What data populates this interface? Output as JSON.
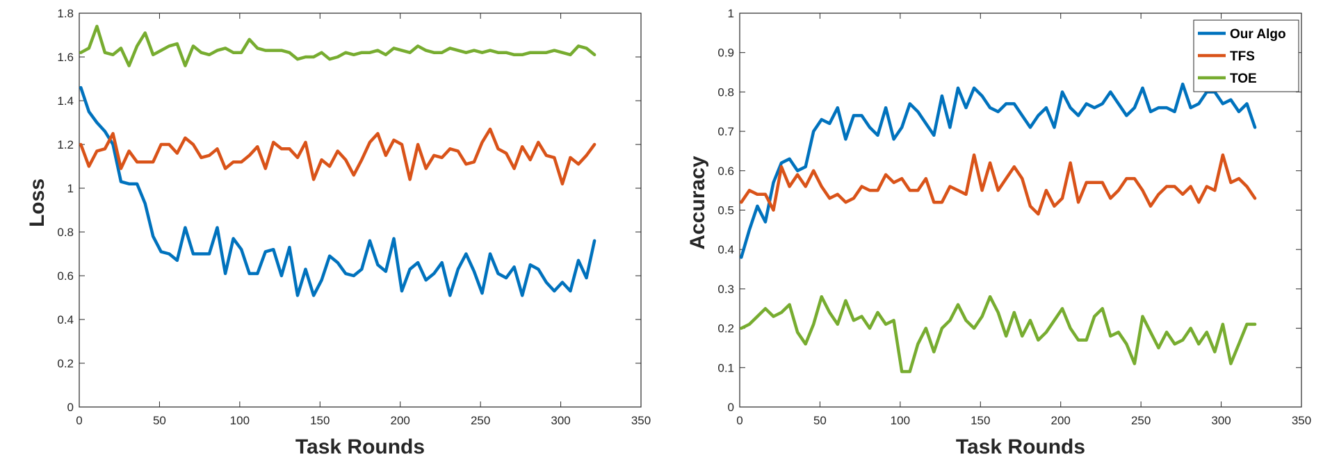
{
  "chart_data": [
    {
      "type": "line",
      "title": "",
      "xlabel": "Task Rounds",
      "ylabel": "Loss",
      "xlim": [
        0,
        350
      ],
      "ylim": [
        0,
        1.8
      ],
      "xticks": [
        0,
        50,
        100,
        150,
        200,
        250,
        300,
        350
      ],
      "yticks": [
        0,
        0.2,
        0.4,
        0.6,
        0.8,
        1,
        1.2,
        1.4,
        1.6,
        1.8
      ],
      "grid": false,
      "legend": "none",
      "x": [
        1,
        6,
        11,
        16,
        21,
        26,
        31,
        36,
        41,
        46,
        51,
        56,
        61,
        66,
        71,
        76,
        81,
        86,
        91,
        96,
        101,
        106,
        111,
        116,
        121,
        126,
        131,
        136,
        141,
        146,
        151,
        156,
        161,
        166,
        171,
        176,
        181,
        186,
        191,
        196,
        201,
        206,
        211,
        216,
        221,
        226,
        231,
        236,
        241,
        246,
        251,
        256,
        261,
        266,
        271,
        276,
        281,
        286,
        291,
        296,
        301,
        306,
        311,
        316,
        321
      ],
      "series": [
        {
          "name": "Our Algo",
          "color": "#0072BD",
          "values": [
            1.46,
            1.35,
            1.3,
            1.26,
            1.2,
            1.03,
            1.02,
            1.02,
            0.93,
            0.78,
            0.71,
            0.7,
            0.67,
            0.82,
            0.7,
            0.7,
            0.7,
            0.82,
            0.61,
            0.77,
            0.72,
            0.61,
            0.61,
            0.71,
            0.72,
            0.6,
            0.73,
            0.51,
            0.63,
            0.51,
            0.58,
            0.69,
            0.66,
            0.61,
            0.6,
            0.63,
            0.76,
            0.65,
            0.62,
            0.77,
            0.53,
            0.63,
            0.66,
            0.58,
            0.61,
            0.66,
            0.51,
            0.63,
            0.7,
            0.62,
            0.52,
            0.7,
            0.61,
            0.59,
            0.64,
            0.51,
            0.65,
            0.63,
            0.57,
            0.53,
            0.57,
            0.53,
            0.67,
            0.59,
            0.76
          ]
        },
        {
          "name": "TFS",
          "color": "#D95319",
          "values": [
            1.2,
            1.1,
            1.17,
            1.18,
            1.25,
            1.09,
            1.17,
            1.12,
            1.12,
            1.12,
            1.2,
            1.2,
            1.16,
            1.23,
            1.2,
            1.14,
            1.15,
            1.18,
            1.09,
            1.12,
            1.12,
            1.15,
            1.19,
            1.09,
            1.21,
            1.18,
            1.18,
            1.14,
            1.21,
            1.04,
            1.13,
            1.1,
            1.17,
            1.13,
            1.06,
            1.13,
            1.21,
            1.25,
            1.15,
            1.22,
            1.2,
            1.04,
            1.2,
            1.09,
            1.15,
            1.14,
            1.18,
            1.17,
            1.11,
            1.12,
            1.21,
            1.27,
            1.18,
            1.16,
            1.09,
            1.19,
            1.13,
            1.21,
            1.15,
            1.14,
            1.02,
            1.14,
            1.11,
            1.15,
            1.2
          ]
        },
        {
          "name": "TOE",
          "color": "#77AC30",
          "values": [
            1.62,
            1.64,
            1.74,
            1.62,
            1.61,
            1.64,
            1.56,
            1.65,
            1.71,
            1.61,
            1.63,
            1.65,
            1.66,
            1.56,
            1.65,
            1.62,
            1.61,
            1.63,
            1.64,
            1.62,
            1.62,
            1.68,
            1.64,
            1.63,
            1.63,
            1.63,
            1.62,
            1.59,
            1.6,
            1.6,
            1.62,
            1.59,
            1.6,
            1.62,
            1.61,
            1.62,
            1.62,
            1.63,
            1.61,
            1.64,
            1.63,
            1.62,
            1.65,
            1.63,
            1.62,
            1.62,
            1.64,
            1.63,
            1.62,
            1.63,
            1.62,
            1.63,
            1.62,
            1.62,
            1.61,
            1.61,
            1.62,
            1.62,
            1.62,
            1.63,
            1.62,
            1.61,
            1.65,
            1.64,
            1.61
          ]
        }
      ]
    },
    {
      "type": "line",
      "title": "",
      "xlabel": "Task Rounds",
      "ylabel": "Accuracy",
      "xlim": [
        0,
        350
      ],
      "ylim": [
        0,
        1
      ],
      "xticks": [
        0,
        50,
        100,
        150,
        200,
        250,
        300,
        350
      ],
      "yticks": [
        0,
        0.1,
        0.2,
        0.3,
        0.4,
        0.5,
        0.6,
        0.7,
        0.8,
        0.9,
        1
      ],
      "grid": false,
      "legend": "top-right",
      "x": [
        1,
        6,
        11,
        16,
        21,
        26,
        31,
        36,
        41,
        46,
        51,
        56,
        61,
        66,
        71,
        76,
        81,
        86,
        91,
        96,
        101,
        106,
        111,
        116,
        121,
        126,
        131,
        136,
        141,
        146,
        151,
        156,
        161,
        166,
        171,
        176,
        181,
        186,
        191,
        196,
        201,
        206,
        211,
        216,
        221,
        226,
        231,
        236,
        241,
        246,
        251,
        256,
        261,
        266,
        271,
        276,
        281,
        286,
        291,
        296,
        301,
        306,
        311,
        316,
        321
      ],
      "series": [
        {
          "name": "Our Algo",
          "color": "#0072BD",
          "values": [
            0.38,
            0.45,
            0.51,
            0.47,
            0.57,
            0.62,
            0.63,
            0.6,
            0.61,
            0.7,
            0.73,
            0.72,
            0.76,
            0.68,
            0.74,
            0.74,
            0.71,
            0.69,
            0.76,
            0.68,
            0.71,
            0.77,
            0.75,
            0.72,
            0.69,
            0.79,
            0.71,
            0.81,
            0.76,
            0.81,
            0.79,
            0.76,
            0.75,
            0.77,
            0.77,
            0.74,
            0.71,
            0.74,
            0.76,
            0.71,
            0.8,
            0.76,
            0.74,
            0.77,
            0.76,
            0.77,
            0.8,
            0.77,
            0.74,
            0.76,
            0.81,
            0.75,
            0.76,
            0.76,
            0.75,
            0.82,
            0.76,
            0.77,
            0.8,
            0.8,
            0.77,
            0.78,
            0.75,
            0.77,
            0.71
          ]
        },
        {
          "name": "TFS",
          "color": "#D95319",
          "values": [
            0.52,
            0.55,
            0.54,
            0.54,
            0.5,
            0.61,
            0.56,
            0.59,
            0.56,
            0.6,
            0.56,
            0.53,
            0.54,
            0.52,
            0.53,
            0.56,
            0.55,
            0.55,
            0.59,
            0.57,
            0.58,
            0.55,
            0.55,
            0.58,
            0.52,
            0.52,
            0.56,
            0.55,
            0.54,
            0.64,
            0.55,
            0.62,
            0.55,
            0.58,
            0.61,
            0.58,
            0.51,
            0.49,
            0.55,
            0.51,
            0.53,
            0.62,
            0.52,
            0.57,
            0.57,
            0.57,
            0.53,
            0.55,
            0.58,
            0.58,
            0.55,
            0.51,
            0.54,
            0.56,
            0.56,
            0.54,
            0.56,
            0.52,
            0.56,
            0.55,
            0.64,
            0.57,
            0.58,
            0.56,
            0.53
          ]
        },
        {
          "name": "TOE",
          "color": "#77AC30",
          "values": [
            0.2,
            0.21,
            0.23,
            0.25,
            0.23,
            0.24,
            0.26,
            0.19,
            0.16,
            0.21,
            0.28,
            0.24,
            0.21,
            0.27,
            0.22,
            0.23,
            0.2,
            0.24,
            0.21,
            0.22,
            0.09,
            0.09,
            0.16,
            0.2,
            0.14,
            0.2,
            0.22,
            0.26,
            0.22,
            0.2,
            0.23,
            0.28,
            0.24,
            0.18,
            0.24,
            0.18,
            0.22,
            0.17,
            0.19,
            0.22,
            0.25,
            0.2,
            0.17,
            0.17,
            0.23,
            0.25,
            0.18,
            0.19,
            0.16,
            0.11,
            0.23,
            0.19,
            0.15,
            0.19,
            0.16,
            0.17,
            0.2,
            0.16,
            0.19,
            0.14,
            0.21,
            0.11,
            0.16,
            0.21,
            0.21
          ]
        }
      ]
    }
  ]
}
